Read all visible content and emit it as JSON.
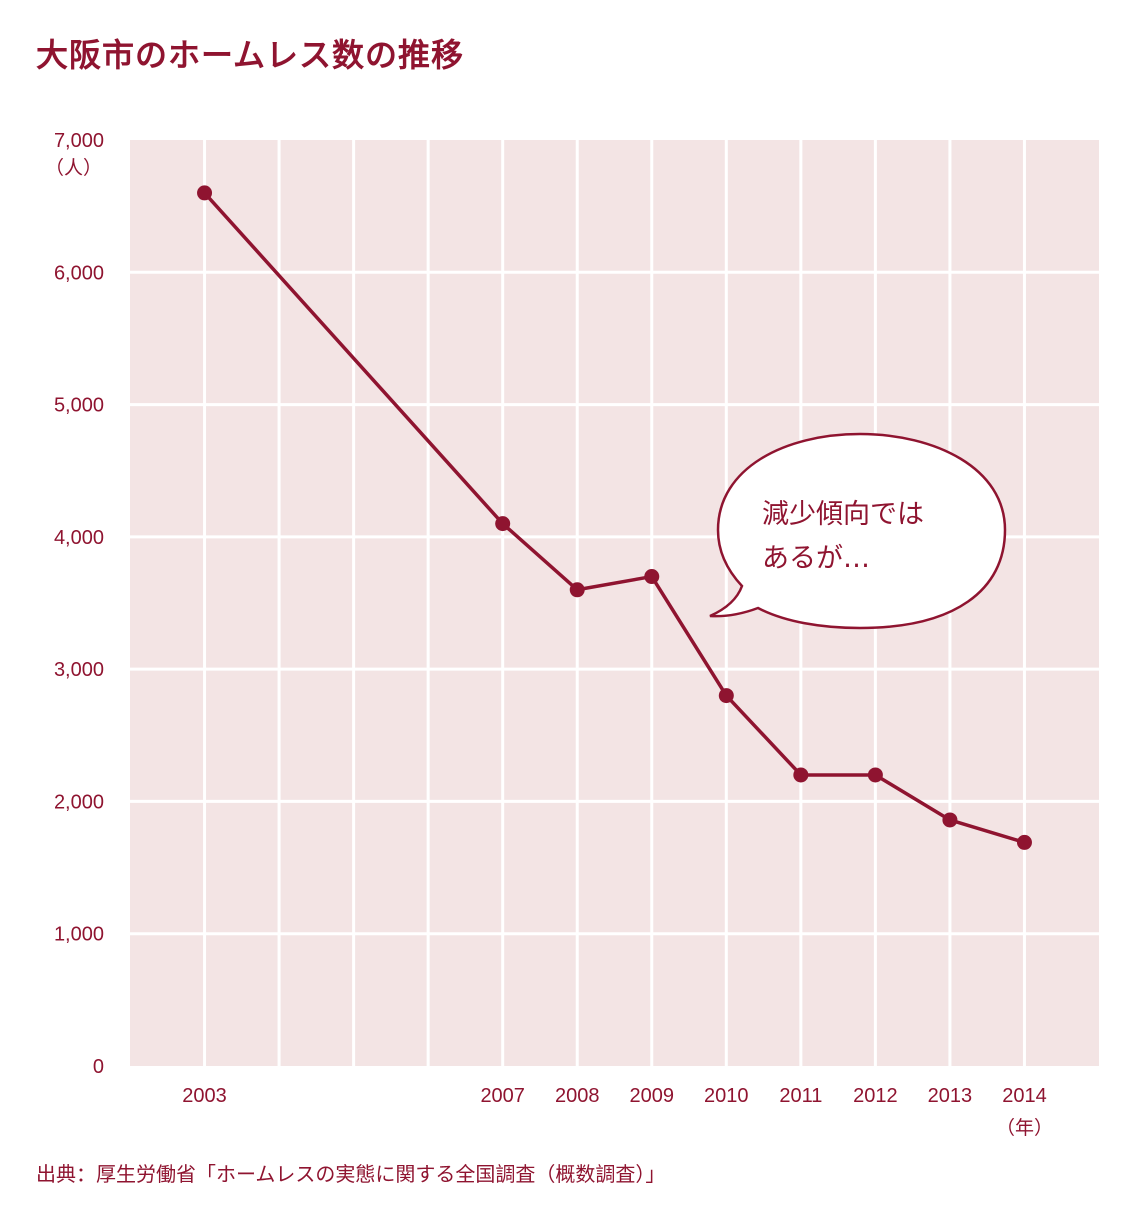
{
  "title": "大阪市のホームレス数の推移",
  "source": "出典：厚生労働省「ホームレスの実態に関する全国調査（概数調査）」",
  "colors": {
    "accent": "#8f1430",
    "plot_bg": "#f3e4e4",
    "grid": "#ffffff"
  },
  "chart_data": {
    "type": "line",
    "title": "大阪市のホームレス数の推移",
    "x": [
      2003,
      2007,
      2008,
      2009,
      2010,
      2011,
      2012,
      2013,
      2014
    ],
    "x_tick_labels": [
      "2003",
      "2007",
      "2008",
      "2009",
      "2010",
      "2011",
      "2012",
      "2013",
      "2014"
    ],
    "series": [
      {
        "values": [
          6600,
          4100,
          3600,
          3700,
          2800,
          2200,
          2200,
          1860,
          1690
        ]
      }
    ],
    "y_ticks": [
      0,
      1000,
      2000,
      3000,
      4000,
      5000,
      6000,
      7000
    ],
    "y_tick_labels": [
      "0",
      "1,000",
      "2,000",
      "3,000",
      "4,000",
      "5,000",
      "6,000",
      "7,000"
    ],
    "ylim": [
      0,
      7000
    ],
    "xlim": [
      2002,
      2015
    ],
    "ylabel": "（人）",
    "xlabel": "（年）",
    "grid": true,
    "annotation": {
      "lines": [
        "減少傾向では",
        "あるが…"
      ]
    }
  }
}
